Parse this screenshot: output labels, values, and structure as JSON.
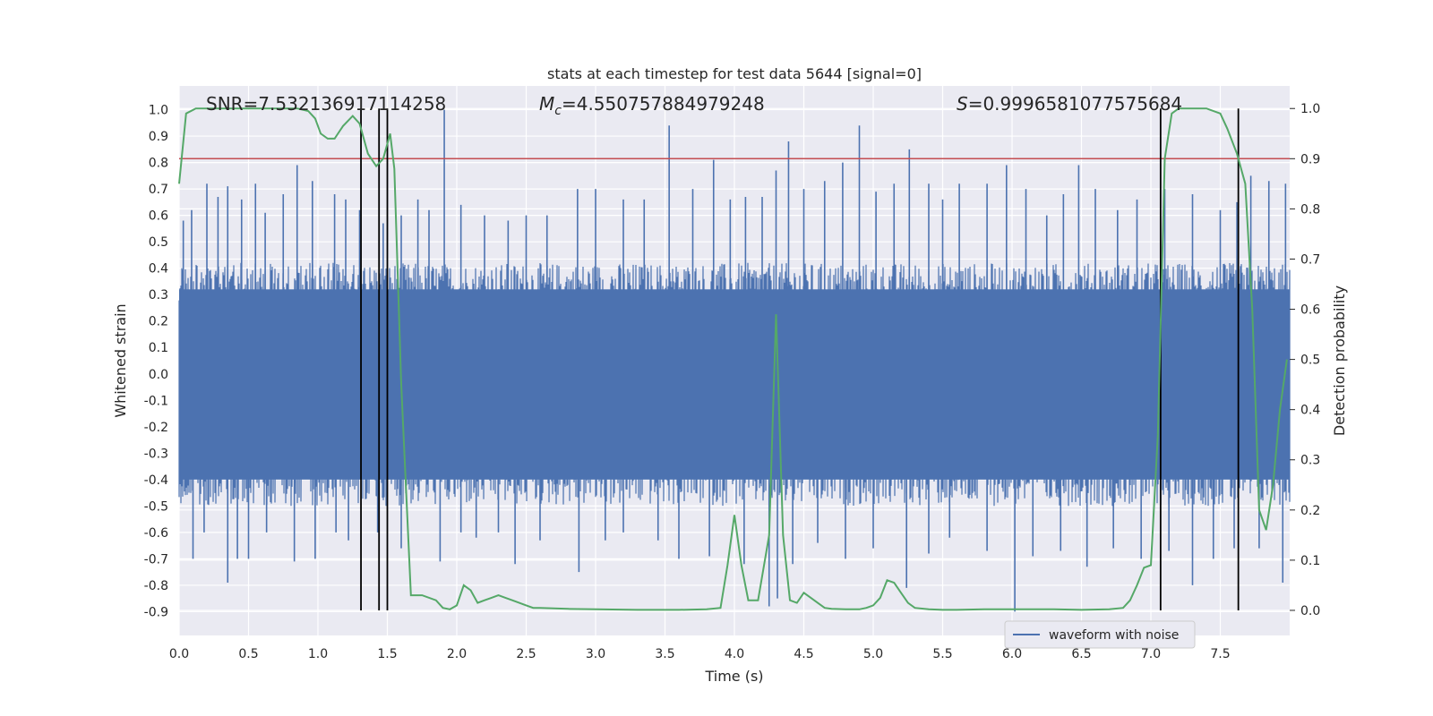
{
  "chart_data": {
    "type": "line",
    "title": "stats at each timestep for test data 5644 [signal=0]",
    "xlabel": "Time (s)",
    "ylabel": "Whitened strain",
    "y2label": "Detection probability",
    "xlim": [
      0.0,
      8.0
    ],
    "ylim": [
      -0.99,
      1.09
    ],
    "y2lim": [
      -0.05,
      1.045
    ],
    "xticks": [
      "0.0",
      "0.5",
      "1.0",
      "1.5",
      "2.0",
      "2.5",
      "3.0",
      "3.5",
      "4.0",
      "4.5",
      "5.0",
      "5.5",
      "6.0",
      "6.5",
      "7.0",
      "7.5"
    ],
    "yticks": [
      "-0.9",
      "-0.8",
      "-0.7",
      "-0.6",
      "-0.5",
      "-0.4",
      "-0.3",
      "-0.2",
      "-0.1",
      "0.0",
      "0.1",
      "0.2",
      "0.3",
      "0.4",
      "0.5",
      "0.6",
      "0.7",
      "0.8",
      "0.9",
      "1.0"
    ],
    "y2ticks": [
      "0.0",
      "0.1",
      "0.2",
      "0.3",
      "0.4",
      "0.5",
      "0.6",
      "0.7",
      "0.8",
      "0.9",
      "1.0"
    ],
    "grid": true,
    "legend": {
      "placement": "lower-right",
      "entries": [
        "waveform with noise"
      ]
    },
    "annotations": {
      "snr": "SNR=7.532136917114258",
      "mc_symbol": "M",
      "mc_sub": "c",
      "mc_value": "=4.550757884979248",
      "s_symbol": "S",
      "s_value": "=0.9996581077575684"
    },
    "threshold_line": {
      "y2": 0.9,
      "color": "#c44e52"
    },
    "vertical_lines": [
      1.31,
      1.44,
      1.5,
      7.07,
      7.63
    ],
    "series": [
      {
        "name": "waveform with noise",
        "color": "#4c72b0",
        "axis": "left",
        "envelope_hi": 0.42,
        "envelope_lo": -0.5,
        "spikes": [
          [
            0.03,
            0.58
          ],
          [
            0.09,
            0.62
          ],
          [
            0.2,
            0.72
          ],
          [
            0.28,
            0.67
          ],
          [
            0.35,
            0.71
          ],
          [
            0.45,
            0.66
          ],
          [
            0.55,
            0.72
          ],
          [
            0.62,
            0.61
          ],
          [
            0.75,
            0.68
          ],
          [
            0.85,
            0.79
          ],
          [
            0.96,
            0.73
          ],
          [
            1.12,
            0.68
          ],
          [
            1.2,
            0.66
          ],
          [
            1.3,
            0.62
          ],
          [
            1.47,
            0.57
          ],
          [
            1.6,
            0.6
          ],
          [
            1.72,
            0.66
          ],
          [
            1.8,
            0.62
          ],
          [
            1.91,
            1.0
          ],
          [
            2.03,
            0.64
          ],
          [
            2.2,
            0.6
          ],
          [
            2.37,
            0.58
          ],
          [
            2.5,
            0.6
          ],
          [
            2.65,
            0.6
          ],
          [
            2.87,
            0.7
          ],
          [
            3.0,
            0.7
          ],
          [
            3.2,
            0.66
          ],
          [
            3.35,
            0.66
          ],
          [
            3.53,
            0.94
          ],
          [
            3.7,
            0.7
          ],
          [
            3.85,
            0.81
          ],
          [
            3.97,
            0.66
          ],
          [
            4.08,
            0.67
          ],
          [
            4.2,
            0.67
          ],
          [
            4.3,
            0.77
          ],
          [
            4.39,
            0.88
          ],
          [
            4.5,
            0.7
          ],
          [
            4.65,
            0.73
          ],
          [
            4.78,
            0.8
          ],
          [
            4.9,
            0.94
          ],
          [
            5.02,
            0.69
          ],
          [
            5.15,
            0.72
          ],
          [
            5.26,
            0.85
          ],
          [
            5.4,
            0.72
          ],
          [
            5.5,
            0.66
          ],
          [
            5.62,
            0.72
          ],
          [
            5.82,
            0.72
          ],
          [
            5.96,
            0.79
          ],
          [
            6.1,
            0.7
          ],
          [
            6.25,
            0.6
          ],
          [
            6.37,
            0.68
          ],
          [
            6.48,
            0.79
          ],
          [
            6.6,
            0.7
          ],
          [
            6.76,
            0.62
          ],
          [
            6.9,
            0.66
          ],
          [
            7.1,
            0.7
          ],
          [
            7.3,
            0.68
          ],
          [
            7.5,
            0.62
          ],
          [
            7.62,
            0.65
          ],
          [
            7.72,
            0.75
          ],
          [
            7.85,
            0.73
          ],
          [
            7.97,
            0.72
          ],
          [
            0.1,
            -0.7
          ],
          [
            0.18,
            -0.6
          ],
          [
            0.35,
            -0.79
          ],
          [
            0.42,
            -0.7
          ],
          [
            0.5,
            -0.7
          ],
          [
            0.63,
            -0.6
          ],
          [
            0.83,
            -0.71
          ],
          [
            0.98,
            -0.7
          ],
          [
            1.13,
            -0.6
          ],
          [
            1.22,
            -0.63
          ],
          [
            1.43,
            -0.6
          ],
          [
            1.6,
            -0.66
          ],
          [
            1.88,
            -0.71
          ],
          [
            2.03,
            -0.6
          ],
          [
            2.14,
            -0.62
          ],
          [
            2.3,
            -0.6
          ],
          [
            2.42,
            -0.72
          ],
          [
            2.6,
            -0.63
          ],
          [
            2.88,
            -0.75
          ],
          [
            3.07,
            -0.63
          ],
          [
            3.2,
            -0.6
          ],
          [
            3.45,
            -0.63
          ],
          [
            3.6,
            -0.7
          ],
          [
            3.82,
            -0.69
          ],
          [
            4.07,
            -0.72
          ],
          [
            4.25,
            -0.88
          ],
          [
            4.31,
            -0.85
          ],
          [
            4.42,
            -0.72
          ],
          [
            4.6,
            -0.64
          ],
          [
            4.8,
            -0.7
          ],
          [
            5.0,
            -0.66
          ],
          [
            5.24,
            -0.81
          ],
          [
            5.4,
            -0.68
          ],
          [
            5.55,
            -0.62
          ],
          [
            5.82,
            -0.67
          ],
          [
            6.02,
            -0.9
          ],
          [
            6.15,
            -0.69
          ],
          [
            6.35,
            -0.67
          ],
          [
            6.54,
            -0.73
          ],
          [
            6.73,
            -0.66
          ],
          [
            6.93,
            -0.7
          ],
          [
            7.13,
            -0.67
          ],
          [
            7.3,
            -0.8
          ],
          [
            7.45,
            -0.7
          ],
          [
            7.6,
            -0.66
          ],
          [
            7.78,
            -0.66
          ],
          [
            7.95,
            -0.79
          ]
        ]
      },
      {
        "name": "Detection probability",
        "color": "#55a868",
        "axis": "right",
        "x": [
          0.0,
          0.05,
          0.12,
          0.3,
          0.5,
          0.7,
          0.85,
          0.93,
          0.98,
          1.02,
          1.07,
          1.12,
          1.18,
          1.25,
          1.3,
          1.36,
          1.42,
          1.47,
          1.52,
          1.55,
          1.6,
          1.67,
          1.75,
          1.85,
          1.9,
          1.95,
          2.0,
          2.05,
          2.1,
          2.15,
          2.2,
          2.25,
          2.3,
          2.35,
          2.4,
          2.45,
          2.5,
          2.55,
          2.6,
          2.8,
          3.0,
          3.3,
          3.6,
          3.8,
          3.9,
          3.95,
          4.0,
          4.05,
          4.1,
          4.17,
          4.25,
          4.3,
          4.35,
          4.4,
          4.45,
          4.5,
          4.55,
          4.6,
          4.65,
          4.7,
          4.8,
          4.9,
          4.95,
          5.0,
          5.05,
          5.1,
          5.15,
          5.2,
          5.25,
          5.3,
          5.4,
          5.5,
          5.6,
          5.8,
          6.0,
          6.3,
          6.5,
          6.7,
          6.8,
          6.85,
          6.9,
          6.95,
          7.0,
          7.05,
          7.1,
          7.15,
          7.2,
          7.3,
          7.4,
          7.5,
          7.55,
          7.62,
          7.68,
          7.73,
          7.78,
          7.83,
          7.88,
          7.93,
          7.98
        ],
        "y": [
          0.85,
          0.99,
          1.0,
          1.0,
          1.0,
          1.0,
          1.0,
          0.995,
          0.98,
          0.95,
          0.94,
          0.94,
          0.965,
          0.985,
          0.97,
          0.91,
          0.885,
          0.9,
          0.95,
          0.88,
          0.45,
          0.03,
          0.03,
          0.02,
          0.005,
          0.002,
          0.01,
          0.05,
          0.04,
          0.015,
          0.02,
          0.025,
          0.03,
          0.025,
          0.02,
          0.015,
          0.01,
          0.005,
          0.005,
          0.003,
          0.002,
          0.001,
          0.001,
          0.002,
          0.005,
          0.09,
          0.19,
          0.09,
          0.02,
          0.02,
          0.15,
          0.59,
          0.15,
          0.02,
          0.015,
          0.035,
          0.025,
          0.015,
          0.005,
          0.003,
          0.002,
          0.002,
          0.005,
          0.01,
          0.025,
          0.06,
          0.055,
          0.035,
          0.015,
          0.005,
          0.002,
          0.001,
          0.001,
          0.002,
          0.002,
          0.002,
          0.001,
          0.002,
          0.005,
          0.02,
          0.05,
          0.085,
          0.09,
          0.35,
          0.9,
          0.99,
          1.0,
          1.0,
          1.0,
          0.99,
          0.96,
          0.91,
          0.85,
          0.6,
          0.2,
          0.16,
          0.25,
          0.4,
          0.5
        ]
      }
    ]
  }
}
